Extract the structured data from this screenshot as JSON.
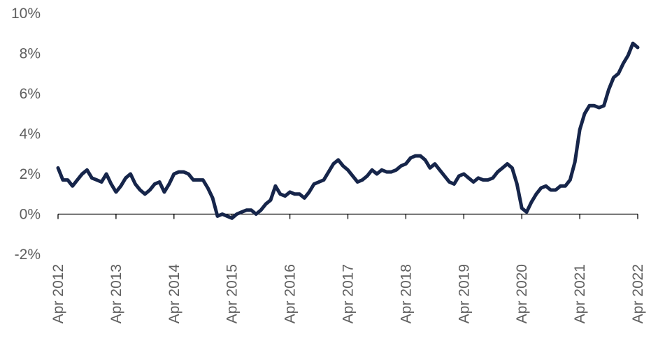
{
  "chart_data": {
    "type": "line",
    "title": "",
    "xlabel": "",
    "ylabel": "",
    "ylim": [
      -2,
      10
    ],
    "yticks": [
      -2,
      0,
      2,
      4,
      6,
      8,
      10
    ],
    "ytick_labels": [
      "-2%",
      "0%",
      "2%",
      "4%",
      "6%",
      "8%",
      "10%"
    ],
    "xlim": [
      "2012-04",
      "2022-04"
    ],
    "xticks": [
      "2012-04",
      "2013-04",
      "2014-04",
      "2015-04",
      "2016-04",
      "2017-04",
      "2018-04",
      "2019-04",
      "2020-04",
      "2021-04",
      "2022-04"
    ],
    "xtick_labels": [
      "Apr 2012",
      "Apr 2013",
      "Apr 2014",
      "Apr 2015",
      "Apr 2016",
      "Apr 2017",
      "Apr 2018",
      "Apr 2019",
      "Apr 2020",
      "Apr 2021",
      "Apr 2022"
    ],
    "grid": false,
    "legend": "none",
    "colors": {
      "line": "#16254a",
      "axis": "#000000",
      "tick_text": "#5f5f5f"
    },
    "series": [
      {
        "dates": [
          "2012-04",
          "2012-05",
          "2012-06",
          "2012-07",
          "2012-08",
          "2012-09",
          "2012-10",
          "2012-11",
          "2012-12",
          "2013-01",
          "2013-02",
          "2013-03",
          "2013-04",
          "2013-05",
          "2013-06",
          "2013-07",
          "2013-08",
          "2013-09",
          "2013-10",
          "2013-11",
          "2013-12",
          "2014-01",
          "2014-02",
          "2014-03",
          "2014-04",
          "2014-05",
          "2014-06",
          "2014-07",
          "2014-08",
          "2014-09",
          "2014-10",
          "2014-11",
          "2014-12",
          "2015-01",
          "2015-02",
          "2015-03",
          "2015-04",
          "2015-05",
          "2015-06",
          "2015-07",
          "2015-08",
          "2015-09",
          "2015-10",
          "2015-11",
          "2015-12",
          "2016-01",
          "2016-02",
          "2016-03",
          "2016-04",
          "2016-05",
          "2016-06",
          "2016-07",
          "2016-08",
          "2016-09",
          "2016-10",
          "2016-11",
          "2016-12",
          "2017-01",
          "2017-02",
          "2017-03",
          "2017-04",
          "2017-05",
          "2017-06",
          "2017-07",
          "2017-08",
          "2017-09",
          "2017-10",
          "2017-11",
          "2017-12",
          "2018-01",
          "2018-02",
          "2018-03",
          "2018-04",
          "2018-05",
          "2018-06",
          "2018-07",
          "2018-08",
          "2018-09",
          "2018-10",
          "2018-11",
          "2018-12",
          "2019-01",
          "2019-02",
          "2019-03",
          "2019-04",
          "2019-05",
          "2019-06",
          "2019-07",
          "2019-08",
          "2019-09",
          "2019-10",
          "2019-11",
          "2019-12",
          "2020-01",
          "2020-02",
          "2020-03",
          "2020-04",
          "2020-05",
          "2020-06",
          "2020-07",
          "2020-08",
          "2020-09",
          "2020-10",
          "2020-11",
          "2020-12",
          "2021-01",
          "2021-02",
          "2021-03",
          "2021-04",
          "2021-05",
          "2021-06",
          "2021-07",
          "2021-08",
          "2021-09",
          "2021-10",
          "2021-11",
          "2021-12",
          "2022-01",
          "2022-02",
          "2022-03",
          "2022-04"
        ],
        "values": [
          2.3,
          1.7,
          1.7,
          1.4,
          1.7,
          2.0,
          2.2,
          1.8,
          1.7,
          1.6,
          2.0,
          1.5,
          1.1,
          1.4,
          1.8,
          2.0,
          1.5,
          1.2,
          1.0,
          1.2,
          1.5,
          1.6,
          1.1,
          1.5,
          2.0,
          2.1,
          2.1,
          2.0,
          1.7,
          1.7,
          1.7,
          1.3,
          0.8,
          -0.1,
          0.0,
          -0.1,
          -0.2,
          0.0,
          0.1,
          0.2,
          0.2,
          0.0,
          0.2,
          0.5,
          0.7,
          1.4,
          1.0,
          0.9,
          1.1,
          1.0,
          1.0,
          0.8,
          1.1,
          1.5,
          1.6,
          1.7,
          2.1,
          2.5,
          2.7,
          2.4,
          2.2,
          1.9,
          1.6,
          1.7,
          1.9,
          2.2,
          2.0,
          2.2,
          2.1,
          2.1,
          2.2,
          2.4,
          2.5,
          2.8,
          2.9,
          2.9,
          2.7,
          2.3,
          2.5,
          2.2,
          1.9,
          1.6,
          1.5,
          1.9,
          2.0,
          1.8,
          1.6,
          1.8,
          1.7,
          1.7,
          1.8,
          2.1,
          2.3,
          2.5,
          2.3,
          1.5,
          0.3,
          0.1,
          0.6,
          1.0,
          1.3,
          1.4,
          1.2,
          1.2,
          1.4,
          1.4,
          1.7,
          2.6,
          4.2,
          5.0,
          5.4,
          5.4,
          5.3,
          5.4,
          6.2,
          6.8,
          7.0,
          7.5,
          7.9,
          8.5,
          8.3
        ]
      }
    ]
  }
}
